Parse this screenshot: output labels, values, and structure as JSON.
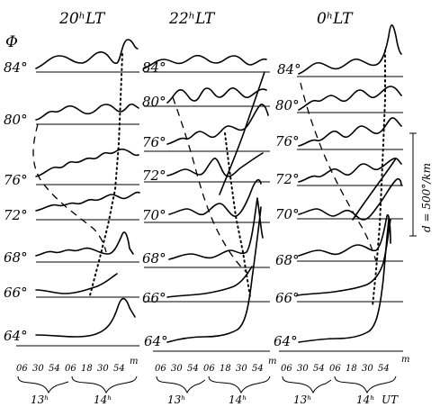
{
  "figure": {
    "phi_label": "Φ",
    "scale_label": "d = 500°/km",
    "panels": [
      {
        "title": "20ʰLT",
        "latitudes": [
          "84°",
          "80°",
          "76°",
          "72°",
          "68°",
          "66°",
          "64°"
        ],
        "tick_labels": [
          "06",
          "30",
          "54",
          "06",
          "18",
          "30",
          "54"
        ],
        "minute_unit": "m",
        "hour_labels": [
          "13ʰ",
          "14ʰ"
        ],
        "ut_label": ""
      },
      {
        "title": "22ʰLT",
        "latitudes": [
          "84°",
          "80°",
          "76°",
          "72°",
          "70°",
          "68°",
          "66°",
          "64°"
        ],
        "tick_labels": [
          "06",
          "30",
          "54",
          "06",
          "18",
          "30",
          "54"
        ],
        "minute_unit": "m",
        "hour_labels": [
          "13ʰ",
          "14ʰ"
        ],
        "ut_label": ""
      },
      {
        "title": "0ʰLT",
        "latitudes": [
          "84°",
          "80°",
          "76°",
          "72°",
          "70°",
          "68°",
          "66°",
          "64°"
        ],
        "tick_labels": [
          "06",
          "30",
          "54",
          "06",
          "18",
          "30",
          "54"
        ],
        "minute_unit": "m",
        "hour_labels": [
          "13ʰ",
          "14ʰ"
        ],
        "ut_label": "UT"
      }
    ]
  }
}
